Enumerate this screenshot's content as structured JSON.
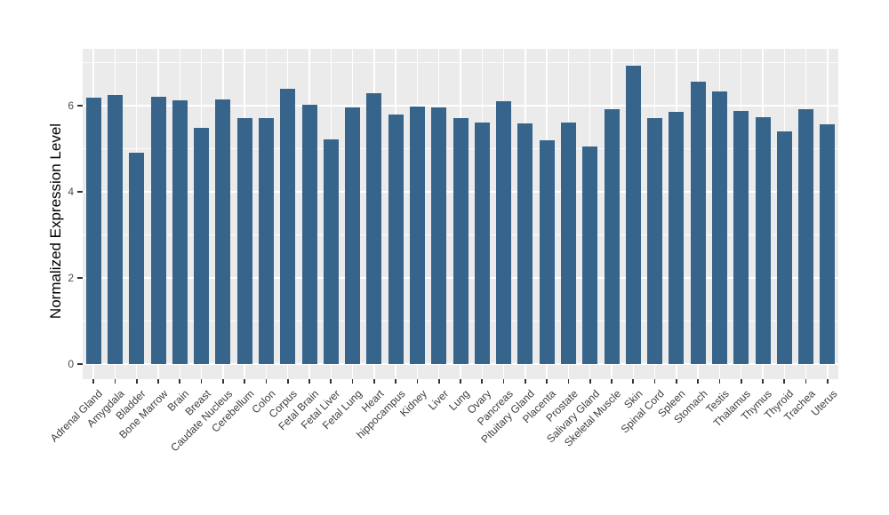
{
  "chart_data": {
    "type": "bar",
    "title": "",
    "xlabel": "",
    "ylabel": "Normalized Expression Level",
    "legend": "none",
    "grid": "on",
    "panel_background": "#EBEBEB",
    "gridline_color": "#FFFFFF",
    "bar_color": "#36648B",
    "tick_mark_color": "#333333",
    "axis_text_color": "#4d4d4d",
    "axis_title_color": "#000000",
    "y_ticks": [
      0,
      2,
      4,
      6
    ],
    "y_minor_ticks": [
      1,
      3,
      5,
      7
    ],
    "ylim": [
      -0.35,
      7.32
    ],
    "bar_rel_width": 0.7,
    "categories": [
      "Adrenal Gland",
      "Amygdala",
      "Bladder",
      "Bone Marrow",
      "Brain",
      "Breast",
      "Caudate Nucleus",
      "Cerebellum",
      "Colon",
      "Corpus",
      "Fetal Brain",
      "Fetal Liver",
      "Fetal Lung",
      "Heart",
      "hippocampus",
      "Kidney",
      "Liver",
      "Lung",
      "Ovary",
      "Pancreas",
      "Pituitary Gland",
      "Placenta",
      "Prostate",
      "Salivary Gland",
      "Skeletal Muscle",
      "Skin",
      "Spinal Cord",
      "Spleen",
      "Stomach",
      "Testis",
      "Thalamus",
      "Thymus",
      "Thyroid",
      "Trachea",
      "Uterus"
    ],
    "values": [
      6.19,
      6.25,
      4.9,
      6.21,
      6.13,
      5.48,
      6.14,
      5.71,
      5.71,
      6.39,
      6.02,
      5.22,
      5.96,
      6.28,
      5.79,
      5.97,
      5.96,
      5.72,
      5.6,
      6.1,
      5.59,
      5.2,
      5.6,
      5.05,
      5.91,
      6.93,
      5.72,
      5.85,
      6.55,
      6.33,
      5.87,
      5.73,
      5.4,
      5.92,
      5.56
    ]
  }
}
